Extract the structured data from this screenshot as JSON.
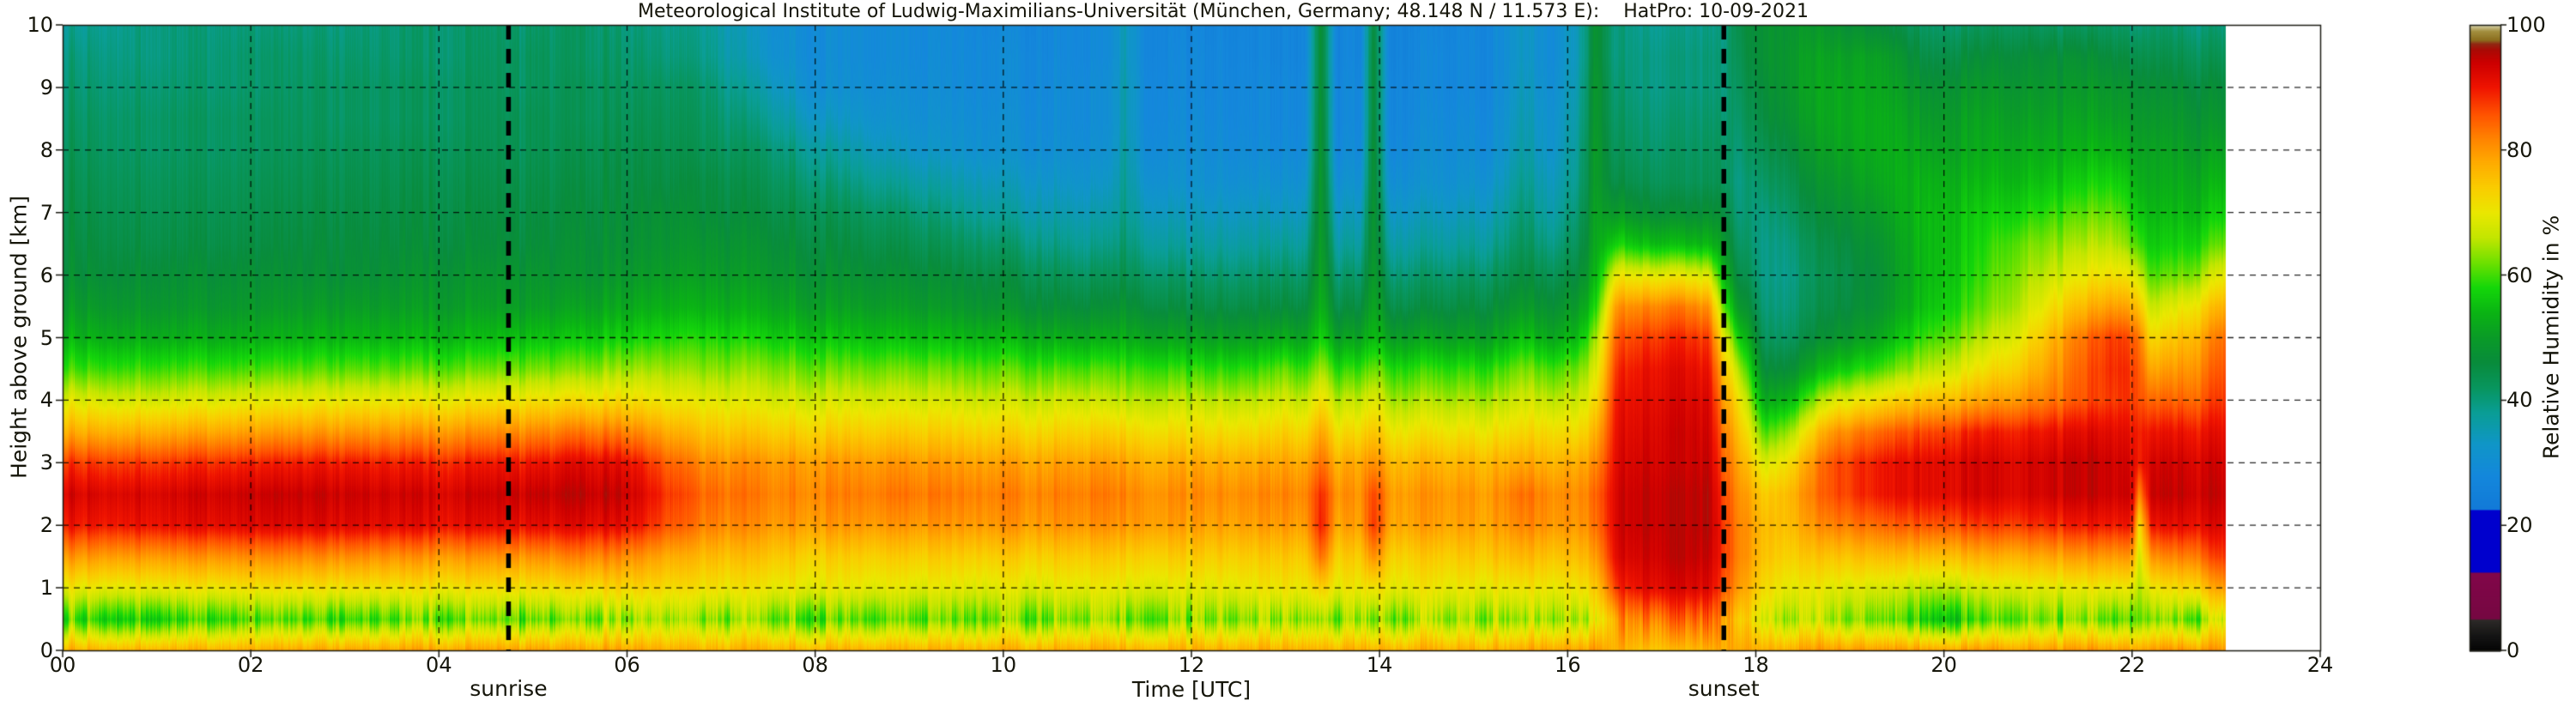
{
  "title": "Meteorological Institute of Ludwig-Maximilians-Universität (München, Germany; 48.148 N / 11.573 E):    HatPro: 10-09-2021",
  "annotations": {
    "sunrise": "sunrise",
    "sunset": "sunset"
  },
  "colorbar": {
    "label": "Relative Humidity in %",
    "tick_values": [
      0,
      20,
      40,
      60,
      80,
      100
    ],
    "tick_labels": [
      "0",
      "20",
      "40",
      "60",
      "80",
      "100"
    ]
  },
  "chart_data": {
    "type": "heatmap",
    "title": "Meteorological Institute of Ludwig-Maximilians-Universität (München, Germany; 48.148 N / 11.573 E):    HatPro: 10-09-2021",
    "xlabel": "Time [UTC]",
    "ylabel": "Height above ground [km]",
    "zlabel": "Relative Humidity in %",
    "xlim": [
      0,
      24
    ],
    "ylim": [
      0,
      10
    ],
    "zlim": [
      0,
      100
    ],
    "grid_on": true,
    "x_tick_hours": [
      0,
      2,
      4,
      6,
      8,
      10,
      12,
      14,
      16,
      18,
      20,
      22,
      24
    ],
    "x_tick_labels": [
      "00",
      "02",
      "04",
      "06",
      "08",
      "10",
      "12",
      "14",
      "16",
      "18",
      "20",
      "22",
      "24"
    ],
    "y_tick_values": [
      0,
      1,
      2,
      3,
      4,
      5,
      6,
      7,
      8,
      9,
      10
    ],
    "y_tick_labels": [
      "0",
      "1",
      "2",
      "3",
      "4",
      "5",
      "6",
      "7",
      "8",
      "9",
      "10"
    ],
    "data_time_range": [
      0,
      23
    ],
    "sunrise_hour": 4.74,
    "sunset_hour": 17.66,
    "heights_km": [
      0,
      0.5,
      1,
      1.5,
      2,
      2.5,
      3,
      3.5,
      4,
      4.5,
      5,
      5.5,
      6,
      6.5,
      7,
      7.5,
      8,
      8.5,
      9,
      9.5,
      10
    ],
    "times_utc": [
      0,
      1,
      2,
      3,
      4,
      5,
      5.5,
      6,
      6.4,
      6.8,
      7.5,
      8,
      9,
      10,
      10.8,
      11.1,
      11.3,
      11.5,
      12,
      12.8,
      12.9,
      13.2,
      13.37,
      13.55,
      13.8,
      13.93,
      14.1,
      14.6,
      15.2,
      15.5,
      15.8,
      16.1,
      16.3,
      16.5,
      16.8,
      17.2,
      17.5,
      17.65,
      17.8,
      18.1,
      18.4,
      18.8,
      19.3,
      19.8,
      20.3,
      20.8,
      21.3,
      21.8,
      22,
      22.07,
      22.2,
      22.6,
      23
    ],
    "rh_percent_by_time": [
      [
        78,
        60,
        70,
        80,
        90,
        93,
        88,
        78,
        69,
        60,
        54,
        50,
        47,
        46,
        45,
        44,
        43,
        42,
        41,
        40,
        38
      ],
      [
        78,
        58,
        70,
        80,
        91,
        93,
        88,
        78,
        68,
        60,
        53,
        49,
        47,
        45,
        44,
        43,
        42,
        42,
        41,
        40,
        40
      ],
      [
        78,
        60,
        71,
        81,
        92,
        94,
        89,
        79,
        69,
        60,
        53,
        49,
        47,
        45,
        44,
        43,
        42,
        42,
        41,
        41,
        40
      ],
      [
        79,
        59,
        71,
        81,
        92,
        94,
        90,
        80,
        70,
        61,
        54,
        50,
        47,
        46,
        45,
        44,
        43,
        42,
        42,
        41,
        40
      ],
      [
        79,
        61,
        71,
        80,
        91,
        93,
        89,
        80,
        70,
        61,
        54,
        50,
        48,
        46,
        45,
        44,
        43,
        42,
        42,
        41,
        41
      ],
      [
        79,
        60,
        71,
        80,
        91,
        94,
        90,
        81,
        71,
        62,
        55,
        50,
        48,
        46,
        45,
        44,
        43,
        43,
        42,
        42,
        41
      ],
      [
        79,
        62,
        72,
        82,
        92,
        95,
        92,
        83,
        72,
        63,
        56,
        51,
        48,
        47,
        46,
        45,
        44,
        43,
        43,
        42,
        42
      ],
      [
        79,
        63,
        73,
        81,
        91,
        94,
        91,
        82,
        72,
        64,
        57,
        52,
        49,
        47,
        46,
        45,
        44,
        43,
        42,
        41,
        40
      ],
      [
        78,
        64,
        72,
        78,
        86,
        88,
        85,
        78,
        70,
        64,
        58,
        53,
        50,
        48,
        47,
        45,
        44,
        43,
        42,
        40,
        39
      ],
      [
        77,
        62,
        71,
        76,
        82,
        84,
        81,
        75,
        69,
        63,
        58,
        53,
        50,
        48,
        46,
        45,
        43,
        42,
        41,
        39,
        38
      ],
      [
        78,
        62,
        70,
        75,
        80,
        82,
        80,
        74,
        68,
        63,
        57,
        52,
        49,
        47,
        45,
        43,
        41,
        38,
        35,
        32,
        31
      ],
      [
        78,
        61,
        70,
        74,
        80,
        82,
        80,
        74,
        68,
        62,
        56,
        51,
        48,
        46,
        44,
        41,
        38,
        34,
        31,
        30,
        30
      ],
      [
        78,
        61,
        69,
        74,
        80,
        83,
        80,
        74,
        68,
        62,
        55,
        50,
        47,
        44,
        41,
        37,
        33,
        31,
        30,
        29,
        29
      ],
      [
        78,
        62,
        69,
        74,
        80,
        82,
        79,
        73,
        67,
        61,
        54,
        48,
        45,
        41,
        37,
        34,
        31,
        30,
        29,
        29,
        28
      ],
      [
        78,
        62,
        69,
        74,
        80,
        82,
        79,
        73,
        67,
        60,
        52,
        46,
        42,
        38,
        35,
        32,
        30,
        29,
        29,
        28,
        28
      ],
      [
        78,
        62,
        69,
        74,
        80,
        82,
        79,
        73,
        66,
        60,
        52,
        46,
        42,
        38,
        35,
        32,
        30,
        29,
        29,
        28,
        28
      ],
      [
        78,
        62,
        69,
        74,
        80,
        82,
        79,
        73,
        66,
        60,
        53,
        48,
        44,
        41,
        39,
        38,
        37,
        36,
        36,
        35,
        35
      ],
      [
        78,
        62,
        69,
        74,
        80,
        81,
        78,
        72,
        66,
        60,
        52,
        46,
        42,
        38,
        35,
        32,
        30,
        29,
        29,
        28,
        28
      ],
      [
        78,
        63,
        69,
        74,
        79,
        81,
        78,
        72,
        66,
        59,
        51,
        45,
        41,
        37,
        34,
        31,
        30,
        29,
        28,
        28,
        27
      ],
      [
        78,
        63,
        70,
        74,
        79,
        81,
        78,
        72,
        66,
        59,
        51,
        45,
        41,
        37,
        34,
        31,
        29,
        28,
        28,
        27,
        27
      ],
      [
        78,
        64,
        71,
        75,
        80,
        82,
        79,
        74,
        68,
        62,
        53,
        46,
        42,
        38,
        34,
        31,
        29,
        28,
        28,
        27,
        27
      ],
      [
        78,
        63,
        70,
        74,
        79,
        81,
        78,
        72,
        66,
        59,
        51,
        45,
        41,
        37,
        34,
        31,
        29,
        28,
        28,
        27,
        27
      ],
      [
        78,
        65,
        74,
        84,
        90,
        89,
        84,
        79,
        72,
        65,
        58,
        54,
        52,
        51,
        50,
        50,
        49,
        49,
        48,
        48,
        48
      ],
      [
        78,
        63,
        70,
        74,
        79,
        81,
        78,
        72,
        66,
        59,
        51,
        45,
        41,
        37,
        34,
        31,
        29,
        28,
        28,
        27,
        27
      ],
      [
        78,
        63,
        70,
        74,
        79,
        80,
        78,
        72,
        66,
        59,
        51,
        45,
        41,
        37,
        34,
        31,
        29,
        28,
        28,
        27,
        27
      ],
      [
        78,
        64,
        72,
        82,
        89,
        88,
        82,
        76,
        70,
        63,
        56,
        53,
        51,
        50,
        50,
        49,
        49,
        48,
        48,
        48,
        47
      ],
      [
        78,
        63,
        70,
        74,
        79,
        80,
        77,
        71,
        65,
        59,
        51,
        45,
        41,
        37,
        34,
        31,
        29,
        28,
        28,
        27,
        27
      ],
      [
        78,
        64,
        70,
        74,
        79,
        80,
        77,
        71,
        65,
        59,
        51,
        45,
        41,
        37,
        34,
        31,
        30,
        29,
        28,
        28,
        27
      ],
      [
        78,
        64,
        70,
        75,
        79,
        80,
        77,
        71,
        65,
        59,
        51,
        46,
        42,
        38,
        35,
        32,
        30,
        29,
        28,
        28,
        28
      ],
      [
        79,
        65,
        71,
        77,
        82,
        84,
        79,
        73,
        68,
        63,
        56,
        50,
        46,
        43,
        41,
        39,
        37,
        36,
        35,
        34,
        34
      ],
      [
        79,
        64,
        70,
        75,
        80,
        81,
        77,
        72,
        66,
        60,
        52,
        47,
        43,
        39,
        36,
        34,
        32,
        31,
        30,
        29,
        29
      ],
      [
        79,
        65,
        71,
        76,
        80,
        81,
        78,
        72,
        67,
        62,
        55,
        50,
        46,
        43,
        41,
        39,
        38,
        37,
        36,
        35,
        35
      ],
      [
        80,
        68,
        74,
        79,
        83,
        84,
        81,
        77,
        72,
        68,
        64,
        58,
        54,
        52,
        51,
        50,
        50,
        49,
        49,
        48,
        48
      ],
      [
        78,
        80,
        88,
        92,
        93,
        93,
        92,
        91,
        90,
        88,
        85,
        80,
        70,
        58,
        50,
        45,
        43,
        42,
        41,
        40,
        40
      ],
      [
        76,
        84,
        92,
        94,
        95,
        95,
        94,
        93,
        92,
        91,
        88,
        82,
        70,
        56,
        48,
        44,
        42,
        41,
        40,
        40,
        39
      ],
      [
        76,
        85,
        93,
        95,
        95,
        95,
        94,
        94,
        93,
        92,
        89,
        83,
        70,
        55,
        47,
        43,
        42,
        41,
        40,
        40,
        39
      ],
      [
        77,
        84,
        92,
        94,
        95,
        95,
        94,
        93,
        92,
        90,
        87,
        80,
        68,
        54,
        47,
        43,
        42,
        41,
        40,
        40,
        39
      ],
      [
        78,
        80,
        86,
        88,
        88,
        87,
        85,
        83,
        80,
        76,
        70,
        62,
        55,
        50,
        46,
        43,
        42,
        41,
        40,
        40,
        39
      ],
      [
        78,
        74,
        80,
        82,
        82,
        81,
        79,
        76,
        72,
        66,
        58,
        50,
        45,
        42,
        40,
        39,
        40,
        41,
        42,
        43,
        44
      ],
      [
        78,
        68,
        72,
        75,
        76,
        74,
        68,
        60,
        52,
        46,
        42,
        40,
        39,
        39,
        40,
        42,
        44,
        46,
        47,
        48,
        48
      ],
      [
        79,
        66,
        70,
        74,
        77,
        78,
        74,
        66,
        56,
        48,
        43,
        41,
        40,
        41,
        43,
        45,
        47,
        49,
        50,
        50,
        49
      ],
      [
        80,
        64,
        69,
        75,
        82,
        86,
        86,
        80,
        68,
        56,
        48,
        45,
        44,
        45,
        47,
        49,
        51,
        52,
        52,
        51,
        48
      ],
      [
        80,
        62,
        68,
        76,
        84,
        90,
        90,
        84,
        72,
        60,
        52,
        48,
        47,
        48,
        50,
        52,
        53,
        53,
        52,
        51,
        46
      ],
      [
        80,
        58,
        66,
        76,
        86,
        92,
        92,
        87,
        76,
        66,
        60,
        56,
        55,
        55,
        55,
        54,
        52,
        50,
        48,
        45,
        42
      ],
      [
        80,
        58,
        67,
        77,
        87,
        93,
        93,
        89,
        78,
        70,
        64,
        60,
        58,
        57,
        56,
        54,
        52,
        51,
        49,
        46,
        42
      ],
      [
        80,
        63,
        69,
        78,
        88,
        93,
        93,
        90,
        81,
        75,
        70,
        66,
        64,
        62,
        58,
        55,
        53,
        51,
        49,
        47,
        43
      ],
      [
        80,
        62,
        69,
        79,
        89,
        94,
        94,
        91,
        84,
        82,
        80,
        74,
        68,
        64,
        60,
        56,
        53,
        51,
        49,
        47,
        42
      ],
      [
        80,
        61,
        70,
        80,
        90,
        94,
        94,
        92,
        88,
        89,
        88,
        80,
        72,
        66,
        62,
        58,
        54,
        51,
        49,
        46,
        42
      ],
      [
        80,
        62,
        70,
        80,
        90,
        94,
        93,
        91,
        88,
        88,
        86,
        78,
        70,
        62,
        58,
        55,
        52,
        50,
        48,
        45,
        41
      ],
      [
        80,
        64,
        66,
        68,
        72,
        82,
        90,
        90,
        87,
        86,
        84,
        76,
        68,
        61,
        57,
        54,
        52,
        50,
        48,
        45,
        41
      ],
      [
        80,
        62,
        70,
        80,
        90,
        94,
        93,
        90,
        84,
        78,
        72,
        66,
        60,
        56,
        54,
        52,
        51,
        49,
        47,
        44,
        41
      ],
      [
        80,
        60,
        72,
        82,
        91,
        94,
        93,
        90,
        84,
        80,
        76,
        70,
        62,
        57,
        54,
        52,
        50,
        48,
        46,
        43,
        40
      ],
      [
        80,
        68,
        80,
        88,
        92,
        94,
        93,
        91,
        88,
        86,
        84,
        78,
        70,
        62,
        57,
        54,
        51,
        48,
        46,
        43,
        40
      ]
    ],
    "colormap_stops": [
      [
        0,
        [
          5,
          5,
          5
        ]
      ],
      [
        2.5,
        [
          22,
          22,
          22
        ]
      ],
      [
        4.9,
        [
          45,
          42,
          40
        ]
      ],
      [
        5.1,
        [
          118,
          8,
          66
        ]
      ],
      [
        12.4,
        [
          130,
          6,
          74
        ]
      ],
      [
        12.6,
        [
          0,
          0,
          205
        ]
      ],
      [
        22.4,
        [
          0,
          0,
          205
        ]
      ],
      [
        22.6,
        [
          18,
          122,
          216
        ]
      ],
      [
        28,
        [
          20,
          136,
          220
        ]
      ],
      [
        33,
        [
          16,
          150,
          200
        ]
      ],
      [
        38,
        [
          10,
          158,
          150
        ]
      ],
      [
        42,
        [
          8,
          150,
          95
        ]
      ],
      [
        46,
        [
          8,
          140,
          60
        ]
      ],
      [
        50,
        [
          10,
          155,
          40
        ]
      ],
      [
        54,
        [
          10,
          180,
          20
        ]
      ],
      [
        58,
        [
          20,
          215,
          10
        ]
      ],
      [
        62,
        [
          110,
          225,
          0
        ]
      ],
      [
        66,
        [
          195,
          230,
          0
        ]
      ],
      [
        70,
        [
          235,
          232,
          0
        ]
      ],
      [
        74,
        [
          250,
          205,
          0
        ]
      ],
      [
        78,
        [
          255,
          172,
          0
        ]
      ],
      [
        82,
        [
          255,
          130,
          0
        ]
      ],
      [
        86,
        [
          255,
          80,
          0
        ]
      ],
      [
        90,
        [
          240,
          20,
          0
        ]
      ],
      [
        94,
        [
          205,
          0,
          0
        ]
      ],
      [
        96,
        [
          170,
          10,
          5
        ]
      ],
      [
        97,
        [
          145,
          40,
          20
        ]
      ],
      [
        97.6,
        [
          140,
          110,
          30
        ]
      ],
      [
        99,
        [
          162,
          142,
          62
        ]
      ],
      [
        100,
        [
          216,
          212,
          170
        ]
      ]
    ]
  }
}
